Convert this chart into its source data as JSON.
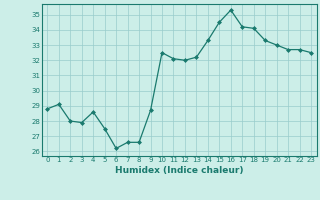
{
  "x": [
    0,
    1,
    2,
    3,
    4,
    5,
    6,
    7,
    8,
    9,
    10,
    11,
    12,
    13,
    14,
    15,
    16,
    17,
    18,
    19,
    20,
    21,
    22,
    23
  ],
  "y": [
    28.8,
    29.1,
    28.0,
    27.9,
    28.6,
    27.5,
    26.2,
    26.6,
    26.6,
    28.7,
    32.5,
    32.1,
    32.0,
    32.2,
    33.3,
    34.5,
    35.3,
    34.2,
    34.1,
    33.3,
    33.0,
    32.7,
    32.7,
    32.5
  ],
  "xlabel": "Humidex (Indice chaleur)",
  "ylim": [
    25.7,
    35.7
  ],
  "xlim": [
    -0.5,
    23.5
  ],
  "line_color": "#1a7a6e",
  "bg_color": "#cceee8",
  "grid_color": "#99cccc",
  "yticks": [
    26,
    27,
    28,
    29,
    30,
    31,
    32,
    33,
    34,
    35
  ],
  "xticks": [
    0,
    1,
    2,
    3,
    4,
    5,
    6,
    7,
    8,
    9,
    10,
    11,
    12,
    13,
    14,
    15,
    16,
    17,
    18,
    19,
    20,
    21,
    22,
    23
  ]
}
